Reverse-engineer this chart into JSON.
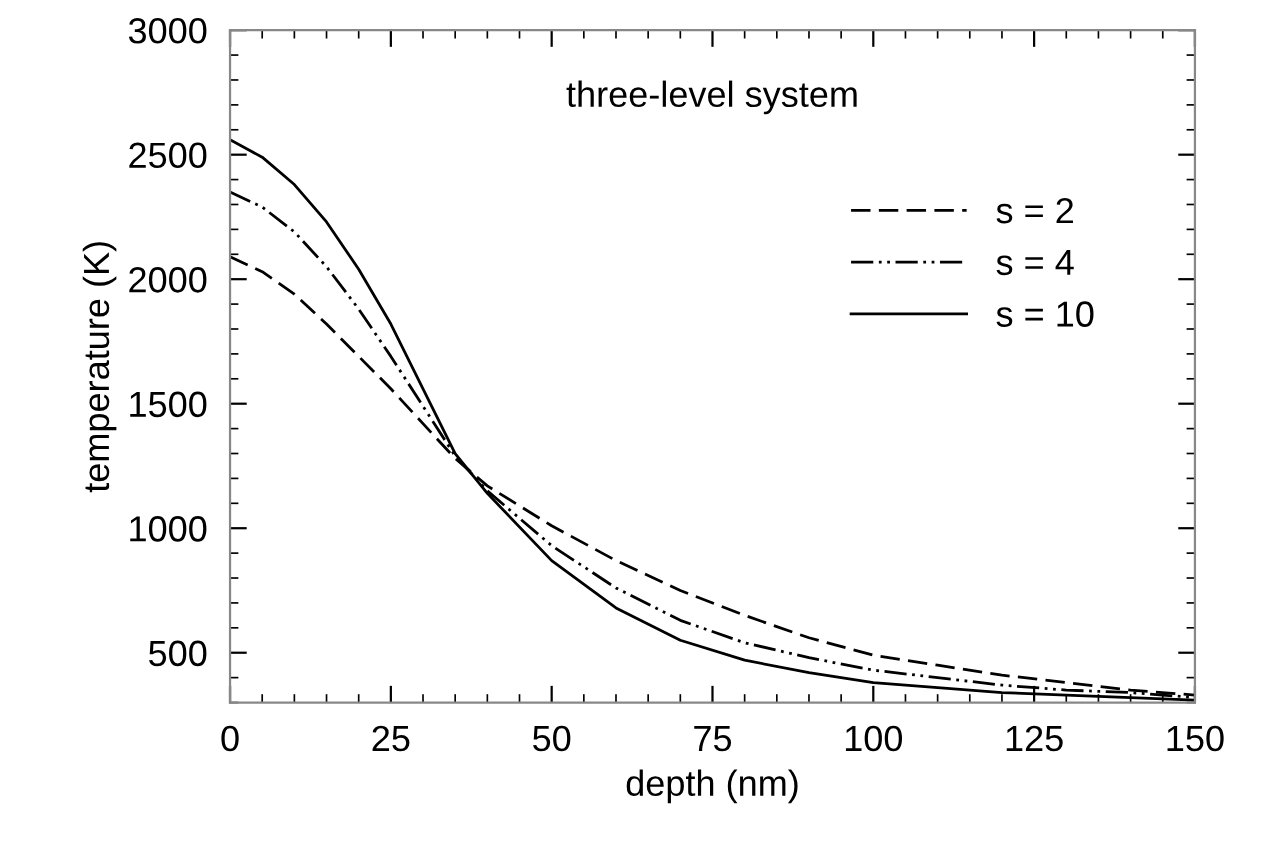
{
  "chart_data": {
    "type": "line",
    "xlabel": "depth (nm)",
    "ylabel": "temperature (K)",
    "annotations": [
      "three-level system"
    ],
    "xlim": [
      0,
      150
    ],
    "ylim": [
      300,
      3000
    ],
    "xticks": [
      0,
      25,
      50,
      75,
      100,
      125,
      150
    ],
    "yticks": [
      500,
      1000,
      1500,
      2000,
      2500,
      3000
    ],
    "grid": false,
    "legend": "right",
    "marker": "none",
    "series": [
      {
        "name": "s = 2",
        "color": "#000000",
        "line_style": "dashed",
        "x": [
          0,
          5,
          10,
          15,
          20,
          25,
          30,
          35,
          40,
          50,
          60,
          70,
          80,
          90,
          100,
          110,
          120,
          130,
          140,
          150
        ],
        "values": [
          2090,
          2030,
          1940,
          1820,
          1690,
          1560,
          1420,
          1280,
          1170,
          1010,
          870,
          750,
          650,
          560,
          490,
          450,
          410,
          380,
          350,
          330
        ]
      },
      {
        "name": "s = 4",
        "color": "#000000",
        "line_style": "dashdotdot",
        "x": [
          0,
          5,
          10,
          15,
          20,
          25,
          30,
          35,
          40,
          50,
          60,
          70,
          80,
          90,
          100,
          110,
          120,
          130,
          140,
          150
        ],
        "values": [
          2350,
          2290,
          2190,
          2050,
          1880,
          1690,
          1490,
          1290,
          1150,
          930,
          760,
          630,
          540,
          480,
          430,
          400,
          370,
          350,
          340,
          320
        ]
      },
      {
        "name": "s = 10",
        "color": "#000000",
        "line_style": "solid",
        "x": [
          0,
          5,
          10,
          15,
          20,
          25,
          30,
          35,
          40,
          50,
          60,
          70,
          80,
          90,
          100,
          110,
          120,
          130,
          140,
          150
        ],
        "values": [
          2560,
          2490,
          2380,
          2230,
          2040,
          1820,
          1560,
          1300,
          1140,
          870,
          680,
          550,
          470,
          420,
          380,
          360,
          340,
          330,
          320,
          310
        ]
      }
    ]
  }
}
